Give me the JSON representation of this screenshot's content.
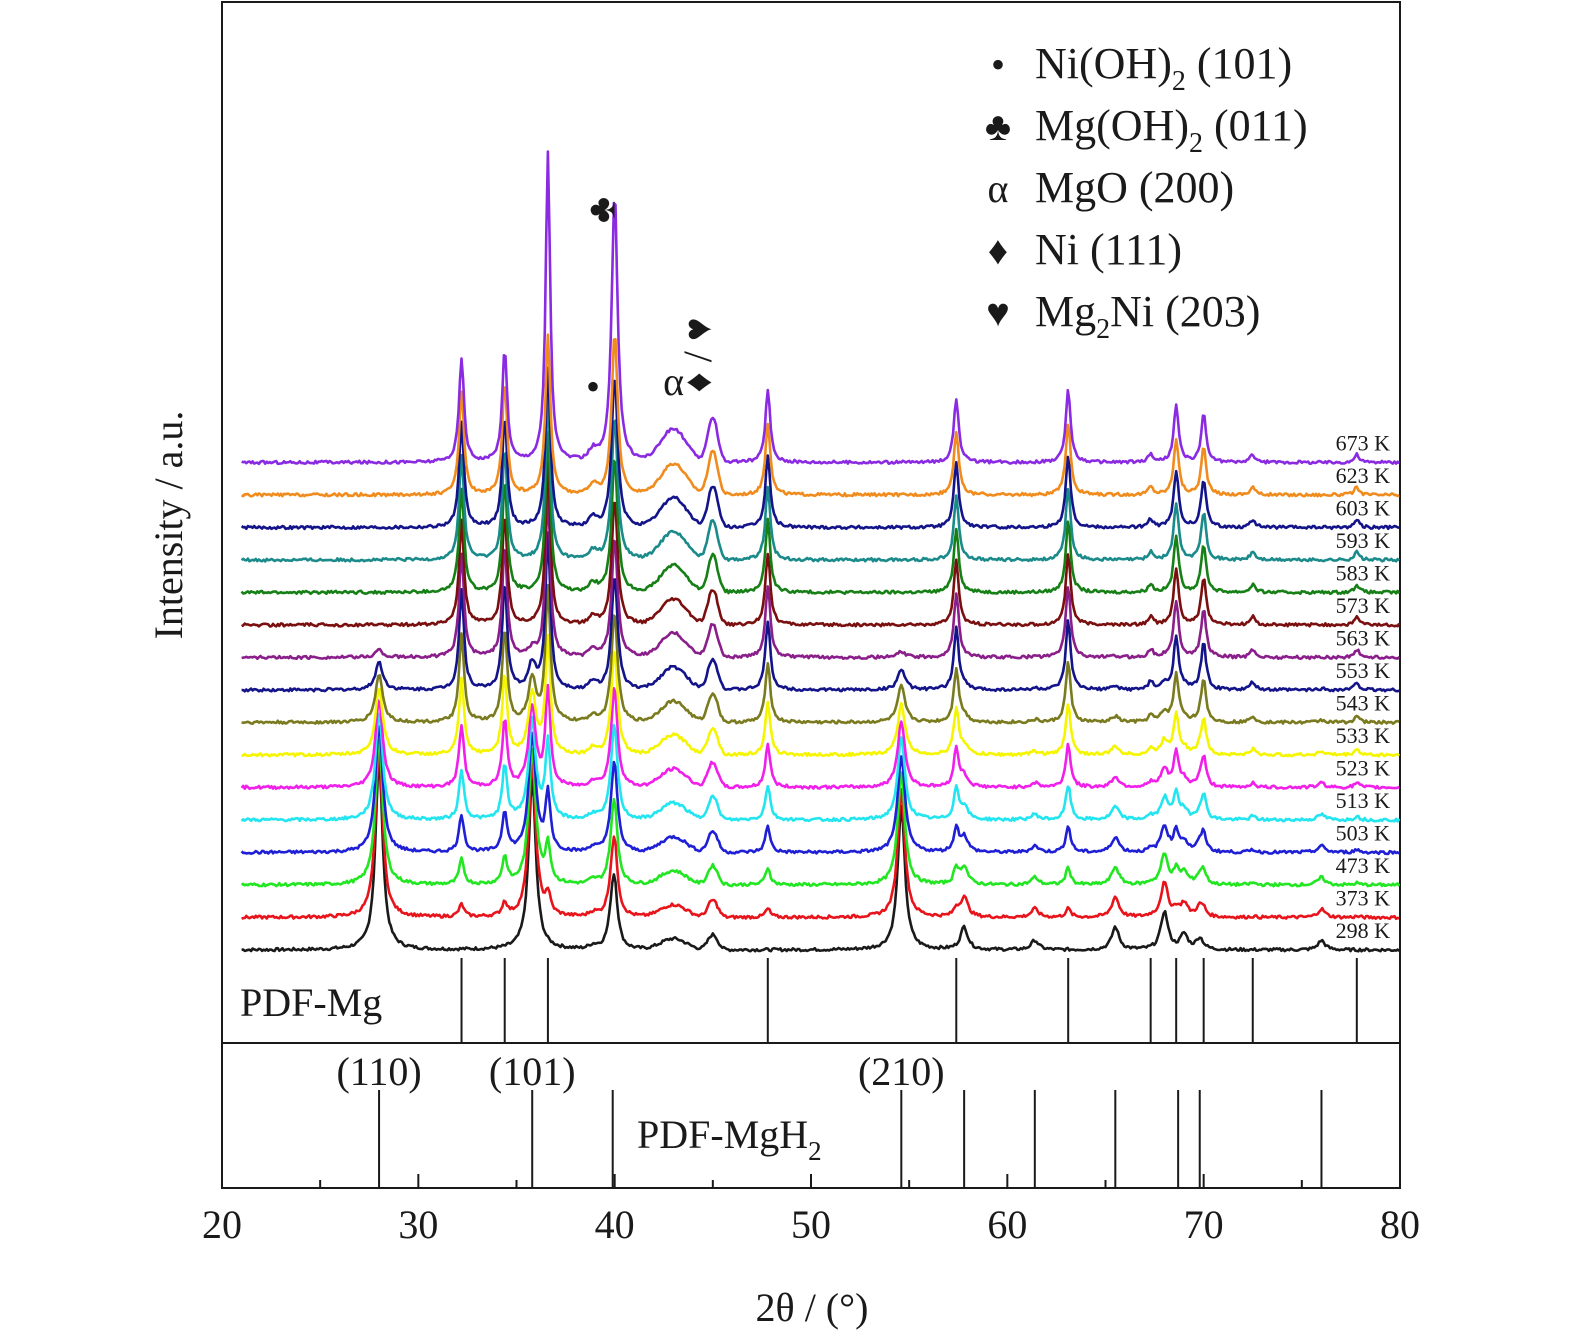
{
  "chart_data": {
    "type": "line",
    "xlabel": "2θ / (°)",
    "ylabel": "Intensity / a.u.",
    "xlim": [
      20,
      80
    ],
    "x_ticks": [
      20,
      30,
      40,
      50,
      60,
      70,
      80
    ],
    "grid": false,
    "legend_position": "top-right",
    "series": [
      {
        "name": "298 K",
        "color": "#1a1a1a"
      },
      {
        "name": "373 K",
        "color": "#e8141b"
      },
      {
        "name": "473 K",
        "color": "#22e622"
      },
      {
        "name": "503 K",
        "color": "#1f1fd6"
      },
      {
        "name": "513 K",
        "color": "#22e5f0"
      },
      {
        "name": "523 K",
        "color": "#f020ea"
      },
      {
        "name": "533 K",
        "color": "#f5f500"
      },
      {
        "name": "543 K",
        "color": "#7a7a1e"
      },
      {
        "name": "553 K",
        "color": "#14148a"
      },
      {
        "name": "563 K",
        "color": "#8a1e8a"
      },
      {
        "name": "573 K",
        "color": "#7a0f0f"
      },
      {
        "name": "583 K",
        "color": "#168016"
      },
      {
        "name": "593 K",
        "color": "#1a8a8a"
      },
      {
        "name": "603 K",
        "color": "#14148a"
      },
      {
        "name": "623 K",
        "color": "#f08c1e"
      },
      {
        "name": "673 K",
        "color": "#8a2be2"
      }
    ],
    "legend": [
      {
        "marker": "•",
        "phase": "Ni(OH)",
        "sub": "2",
        "rest": " (101)"
      },
      {
        "marker": "♣",
        "phase": "Mg(OH)",
        "sub": "2",
        "rest": " (011)"
      },
      {
        "marker": "α",
        "phase": "MgO (200)",
        "sub": "",
        "rest": ""
      },
      {
        "marker": "♦",
        "phase": "Ni (111)",
        "sub": "",
        "rest": ""
      },
      {
        "marker": "♥",
        "phase": "Mg",
        "sub": "2",
        "rest": "Ni (203)"
      }
    ],
    "peak_markers": [
      {
        "symbol": "•",
        "x": 38.9
      },
      {
        "symbol": "♣",
        "x": 40.0
      },
      {
        "symbol": "α",
        "x": 43.0
      },
      {
        "symbol": "♦ / ♥",
        "x": 44.9
      }
    ],
    "pdf_mg": {
      "label": "PDF-Mg",
      "lines": [
        32.2,
        34.4,
        36.6,
        47.8,
        57.4,
        63.1,
        67.3,
        68.6,
        70.0,
        72.5,
        77.8
      ]
    },
    "pdf_mgh2": {
      "label": "PDF-MgH",
      "label_sub": "2",
      "lines": [
        28.0,
        35.8,
        39.9,
        54.6,
        57.8,
        61.4,
        65.5,
        68.7,
        69.8,
        76.0
      ],
      "index_labels": [
        {
          "text": "(110)",
          "x": 28.0
        },
        {
          "text": "(101)",
          "x": 35.8
        },
        {
          "text": "(210)",
          "x": 54.6
        }
      ]
    }
  }
}
